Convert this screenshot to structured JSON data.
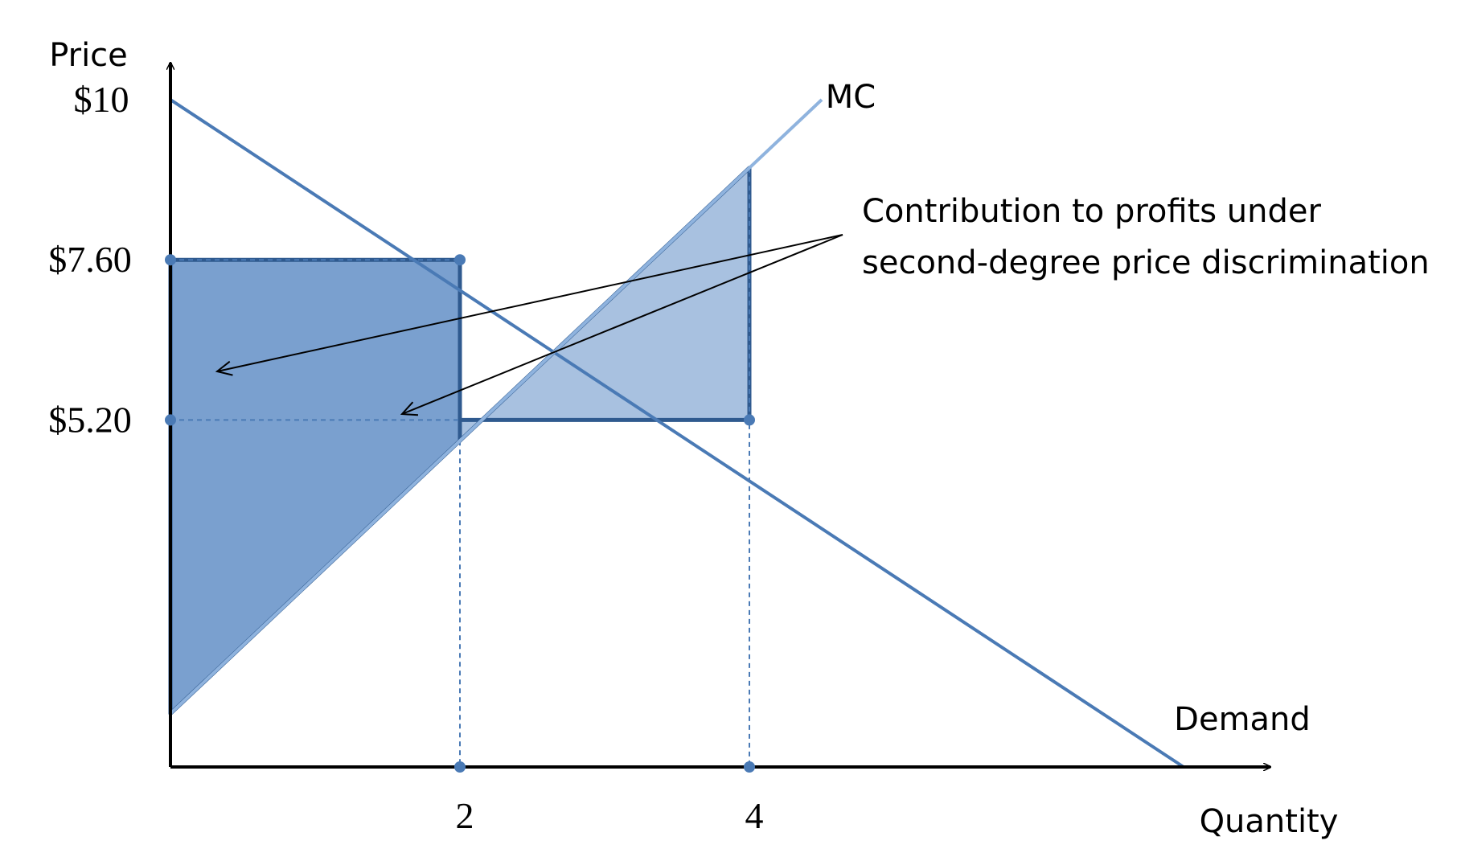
{
  "chart_data": {
    "type": "line",
    "ylabel": "Price",
    "xlabel": "Quantity",
    "ylim": [
      0,
      10
    ],
    "xlim": [
      0,
      7
    ],
    "y_ticks": [
      {
        "value": 10,
        "label": "$10"
      },
      {
        "value": 7.6,
        "label": "$7.60"
      },
      {
        "value": 5.2,
        "label": "$5.20"
      }
    ],
    "x_ticks": [
      {
        "value": 2,
        "label": "2"
      },
      {
        "value": 4,
        "label": "4"
      }
    ],
    "series": [
      {
        "name": "Demand",
        "x": [
          0,
          7
        ],
        "y": [
          10,
          0
        ],
        "color": "#4a7ab5"
      },
      {
        "name": "MC",
        "x": [
          0,
          4.5
        ],
        "y": [
          0.8,
          10
        ],
        "color": "#8fb3de"
      }
    ],
    "shaded_regions": [
      {
        "x": [
          0,
          2
        ],
        "price": 7.6,
        "color": "#7aa0cf"
      },
      {
        "x": [
          2,
          4
        ],
        "price": 5.2,
        "color": "#a8c1e0"
      }
    ],
    "points": [
      {
        "x": 0,
        "y": 7.6
      },
      {
        "x": 2,
        "y": 7.6
      },
      {
        "x": 0,
        "y": 5.2
      },
      {
        "x": 4,
        "y": 5.2
      },
      {
        "x": 2,
        "y": 0
      },
      {
        "x": 4,
        "y": 0
      }
    ],
    "annotation": {
      "lines": [
        "Contribution to profits under",
        "second-degree price discrimination"
      ]
    },
    "colors": {
      "axis": "#000000",
      "region_outline": "#2f5a8f",
      "point": "#4a7ab5"
    }
  }
}
